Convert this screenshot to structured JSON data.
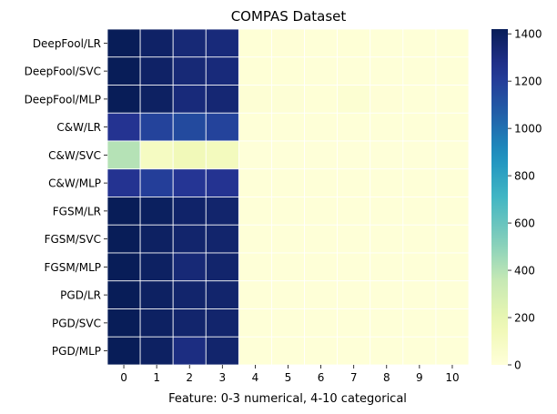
{
  "chart_data": {
    "type": "heatmap",
    "title": "COMPAS Dataset",
    "xlabel": "Feature: 0-3 numerical, 4-10 categorical",
    "ylabel": "",
    "x_categories": [
      "0",
      "1",
      "2",
      "3",
      "4",
      "5",
      "6",
      "7",
      "8",
      "9",
      "10"
    ],
    "y_categories": [
      "DeepFool/LR",
      "DeepFool/SVC",
      "DeepFool/MLP",
      "C&W/LR",
      "C&W/SVC",
      "C&W/MLP",
      "FGSM/LR",
      "FGSM/SVC",
      "FGSM/MLP",
      "PGD/LR",
      "PGD/SVC",
      "PGD/MLP"
    ],
    "values": [
      [
        1420,
        1380,
        1330,
        1320,
        12,
        14,
        10,
        12,
        10,
        10,
        10
      ],
      [
        1420,
        1380,
        1330,
        1320,
        12,
        12,
        10,
        10,
        10,
        10,
        10
      ],
      [
        1420,
        1390,
        1320,
        1340,
        20,
        16,
        12,
        30,
        14,
        10,
        10
      ],
      [
        1250,
        1180,
        1150,
        1180,
        10,
        10,
        8,
        8,
        8,
        8,
        8
      ],
      [
        400,
        100,
        140,
        120,
        5,
        5,
        5,
        5,
        5,
        5,
        5
      ],
      [
        1250,
        1200,
        1240,
        1250,
        8,
        8,
        8,
        8,
        8,
        8,
        8
      ],
      [
        1420,
        1400,
        1370,
        1360,
        10,
        10,
        10,
        10,
        10,
        10,
        10
      ],
      [
        1420,
        1390,
        1360,
        1360,
        10,
        10,
        10,
        10,
        10,
        10,
        10
      ],
      [
        1420,
        1390,
        1330,
        1360,
        10,
        10,
        10,
        10,
        10,
        10,
        10
      ],
      [
        1420,
        1390,
        1360,
        1360,
        10,
        10,
        10,
        10,
        10,
        10,
        10
      ],
      [
        1420,
        1390,
        1360,
        1360,
        10,
        10,
        10,
        10,
        10,
        10,
        10
      ],
      [
        1420,
        1390,
        1300,
        1360,
        10,
        10,
        10,
        10,
        10,
        10,
        10
      ]
    ],
    "colormap": "YlGnBu",
    "colorbar": {
      "min": 0,
      "max": 1420,
      "ticks": [
        0,
        200,
        400,
        600,
        800,
        1000,
        1200,
        1400
      ],
      "tick_labels": [
        "0",
        "200",
        "400",
        "600",
        "800",
        "1000",
        "1200",
        "1400"
      ]
    },
    "grid": false,
    "legend": "colorbar-right"
  }
}
